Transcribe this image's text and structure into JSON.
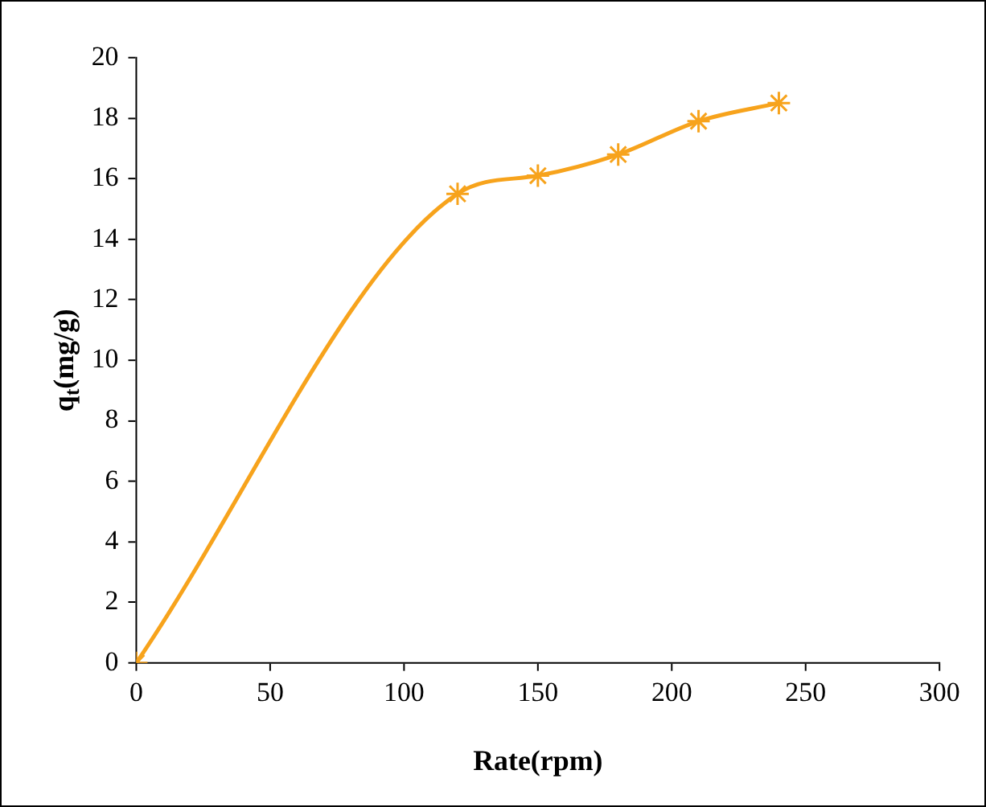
{
  "chart_data": {
    "type": "line",
    "xlabel": "Rate(rpm)",
    "ylabel": "q$_{t}$(mg/g)",
    "x": [
      0,
      120,
      150,
      180,
      210,
      240
    ],
    "series": [
      {
        "color": "#f7a31c",
        "values": [
          0,
          15.5,
          16.1,
          16.8,
          17.9,
          18.5
        ]
      }
    ],
    "xlim": [
      0,
      300
    ],
    "xticks": [
      0,
      50,
      100,
      150,
      200,
      250,
      300
    ],
    "ylim": [
      0,
      20
    ],
    "yticks": [
      0,
      2,
      4,
      6,
      8,
      10,
      12,
      14,
      16,
      18,
      20
    ],
    "marker": "cross",
    "line_style": "solid"
  }
}
